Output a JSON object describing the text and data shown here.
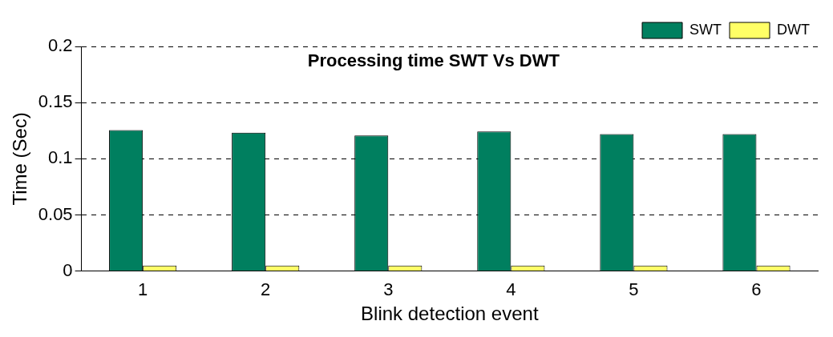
{
  "chart_data": {
    "type": "bar",
    "title": "Processing time SWT Vs DWT",
    "xlabel": "Blink detection event",
    "ylabel": "Time (Sec)",
    "categories": [
      "1",
      "2",
      "3",
      "4",
      "5",
      "6"
    ],
    "series": [
      {
        "name": "SWT",
        "color": "#007f5f",
        "values": [
          0.1255,
          0.1232,
          0.1208,
          0.1244,
          0.122,
          0.122
        ]
      },
      {
        "name": "DWT",
        "color": "#ffff66",
        "values": [
          0.005,
          0.005,
          0.005,
          0.005,
          0.005,
          0.005
        ]
      }
    ],
    "ylim": [
      0,
      0.2
    ],
    "yticks": [
      0,
      0.05,
      0.1,
      0.15,
      0.2
    ],
    "grid": "y",
    "legend": "top right"
  }
}
